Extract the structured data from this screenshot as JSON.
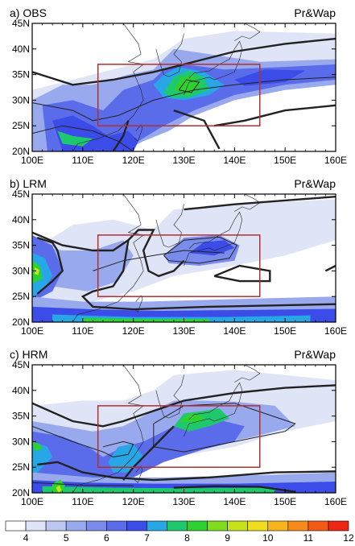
{
  "panels": [
    {
      "id": "obs",
      "label": "a) OBS",
      "right_label": "Pr&Wap"
    },
    {
      "id": "lrm",
      "label": "b) LRM",
      "right_label": "Pr&Wap"
    },
    {
      "id": "hrm",
      "label": "c) HRM",
      "right_label": "Pr&Wap"
    }
  ],
  "axes": {
    "lon_ticks": [
      "100E",
      "110E",
      "120E",
      "130E",
      "140E",
      "150E",
      "160E"
    ],
    "lat_ticks": [
      "45N",
      "40N",
      "35N",
      "30N",
      "25N",
      "20N"
    ],
    "lon_range": [
      100,
      160
    ],
    "lat_range": [
      20,
      45
    ]
  },
  "box_region": {
    "lon": [
      113,
      145
    ],
    "lat": [
      25,
      37
    ]
  },
  "colorbar": {
    "labels": [
      "4",
      "5",
      "6",
      "7",
      "8",
      "9",
      "10",
      "11",
      "12"
    ],
    "colors": [
      "#ffffff",
      "#dfe4f7",
      "#bcc7f2",
      "#99a9ee",
      "#7a8bec",
      "#5b6cea",
      "#3b4ce8",
      "#27a7e6",
      "#1ec96e",
      "#2ed230",
      "#7fdc1f",
      "#c8e31b",
      "#eede1c",
      "#f7b51b",
      "#f78a18",
      "#f35a16",
      "#ee2614"
    ]
  },
  "colors": {
    "box": "#b03030",
    "contour": "#222222",
    "coast": "#222222"
  }
}
